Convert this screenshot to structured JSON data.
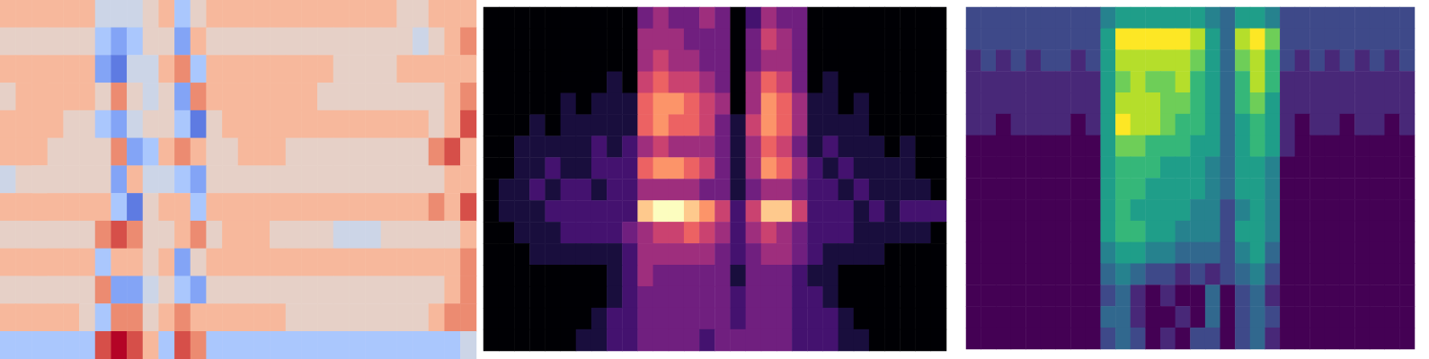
{
  "chart_data": [
    {
      "type": "heatmap",
      "color": "coolwarm",
      "zlim": [
        0,
        9
      ],
      "grid": false,
      "tick_labels": false,
      "cells": [
        [
          6,
          6,
          6,
          6,
          6,
          6,
          4,
          4,
          4,
          5,
          6,
          3,
          5,
          6,
          6,
          6,
          6,
          6,
          6,
          6,
          6,
          6,
          6,
          6,
          6,
          5,
          5,
          6,
          6,
          6
        ],
        [
          5,
          5,
          5,
          5,
          5,
          5,
          3,
          2,
          3,
          5,
          5,
          2,
          6,
          5,
          5,
          5,
          5,
          5,
          5,
          5,
          5,
          5,
          5,
          5,
          5,
          5,
          4,
          5,
          6,
          7
        ],
        [
          6,
          6,
          6,
          6,
          6,
          6,
          2,
          1,
          4,
          4,
          6,
          7,
          3,
          6,
          6,
          6,
          6,
          6,
          6,
          6,
          6,
          5,
          5,
          5,
          5,
          6,
          6,
          6,
          6,
          6
        ],
        [
          5,
          6,
          6,
          6,
          6,
          6,
          5,
          7,
          5,
          4,
          5,
          2,
          7,
          6,
          6,
          6,
          6,
          6,
          6,
          6,
          5,
          5,
          5,
          5,
          5,
          5,
          5,
          5,
          6,
          7
        ],
        [
          6,
          6,
          6,
          6,
          5,
          5,
          3,
          2,
          4,
          5,
          5,
          3,
          1,
          5,
          6,
          6,
          6,
          6,
          6,
          6,
          6,
          6,
          6,
          6,
          6,
          6,
          6,
          5,
          6,
          8
        ],
        [
          6,
          6,
          6,
          5,
          5,
          5,
          5,
          7,
          2,
          3,
          6,
          7,
          6,
          5,
          5,
          6,
          6,
          6,
          5,
          5,
          5,
          5,
          5,
          5,
          5,
          5,
          5,
          7,
          8,
          6
        ],
        [
          4,
          5,
          5,
          5,
          5,
          5,
          5,
          2,
          6,
          4,
          4,
          3,
          2,
          5,
          5,
          5,
          5,
          5,
          5,
          5,
          5,
          5,
          5,
          5,
          5,
          5,
          5,
          5,
          6,
          6
        ],
        [
          6,
          6,
          6,
          6,
          6,
          6,
          6,
          3,
          1,
          5,
          6,
          6,
          3,
          6,
          6,
          6,
          6,
          6,
          6,
          6,
          6,
          6,
          6,
          6,
          6,
          6,
          6,
          7,
          6,
          8
        ],
        [
          5,
          5,
          5,
          5,
          5,
          5,
          7,
          8,
          7,
          5,
          5,
          6,
          7,
          5,
          6,
          6,
          6,
          5,
          5,
          5,
          5,
          4,
          4,
          4,
          5,
          5,
          5,
          5,
          5,
          6
        ],
        [
          6,
          6,
          6,
          6,
          6,
          6,
          3,
          6,
          6,
          5,
          6,
          2,
          5,
          6,
          6,
          6,
          6,
          6,
          6,
          6,
          6,
          6,
          6,
          6,
          6,
          6,
          6,
          6,
          6,
          7
        ],
        [
          5,
          5,
          5,
          5,
          5,
          5,
          7,
          2,
          2,
          4,
          5,
          3,
          2,
          5,
          5,
          5,
          5,
          5,
          5,
          5,
          5,
          5,
          5,
          5,
          5,
          5,
          5,
          5,
          6,
          7
        ],
        [
          6,
          6,
          6,
          6,
          6,
          5,
          3,
          7,
          7,
          5,
          6,
          7,
          6,
          6,
          6,
          6,
          6,
          6,
          5,
          5,
          5,
          5,
          5,
          5,
          5,
          5,
          5,
          6,
          7,
          7
        ],
        [
          3,
          3,
          3,
          3,
          3,
          3,
          8,
          9,
          8,
          6,
          3,
          8,
          7,
          3,
          3,
          3,
          3,
          3,
          3,
          3,
          3,
          3,
          3,
          3,
          3,
          3,
          3,
          3,
          3,
          4
        ]
      ]
    },
    {
      "type": "heatmap",
      "color": "magma",
      "zlim": [
        0,
        9
      ],
      "grid": false,
      "tick_labels": false,
      "cells": [
        [
          0,
          0,
          0,
          0,
          0,
          0,
          0,
          0,
          0,
          0,
          3,
          4,
          3,
          3,
          4,
          3,
          0,
          2,
          4,
          3,
          3,
          0,
          0,
          0,
          0,
          0,
          0,
          0,
          0,
          0
        ],
        [
          0,
          0,
          0,
          0,
          0,
          0,
          0,
          0,
          0,
          0,
          4,
          4,
          4,
          3,
          3,
          3,
          0,
          3,
          5,
          4,
          3,
          0,
          0,
          0,
          0,
          0,
          0,
          0,
          0,
          0
        ],
        [
          0,
          0,
          0,
          0,
          0,
          0,
          0,
          0,
          0,
          0,
          4,
          5,
          4,
          4,
          3,
          3,
          0,
          3,
          4,
          4,
          3,
          0,
          0,
          0,
          0,
          0,
          0,
          0,
          0,
          0
        ],
        [
          0,
          0,
          0,
          0,
          0,
          0,
          0,
          0,
          1,
          0,
          5,
          6,
          5,
          5,
          4,
          3,
          0,
          4,
          6,
          5,
          3,
          0,
          1,
          0,
          0,
          0,
          0,
          0,
          0,
          0
        ],
        [
          0,
          0,
          0,
          0,
          0,
          1,
          0,
          1,
          1,
          1,
          6,
          7,
          7,
          6,
          5,
          4,
          0,
          4,
          7,
          6,
          4,
          1,
          1,
          0,
          1,
          0,
          0,
          0,
          0,
          0
        ],
        [
          0,
          0,
          0,
          1,
          0,
          1,
          1,
          1,
          1,
          1,
          6,
          7,
          6,
          6,
          5,
          3,
          1,
          5,
          7,
          6,
          4,
          1,
          1,
          1,
          1,
          0,
          0,
          0,
          0,
          0
        ],
        [
          0,
          0,
          1,
          1,
          1,
          1,
          1,
          2,
          1,
          2,
          4,
          5,
          4,
          4,
          4,
          3,
          1,
          4,
          6,
          5,
          3,
          1,
          2,
          1,
          1,
          1,
          0,
          1,
          0,
          0
        ],
        [
          0,
          0,
          1,
          1,
          2,
          1,
          1,
          2,
          2,
          2,
          6,
          7,
          7,
          6,
          5,
          3,
          1,
          4,
          7,
          6,
          4,
          2,
          1,
          2,
          1,
          1,
          1,
          1,
          0,
          0
        ],
        [
          0,
          1,
          1,
          2,
          1,
          2,
          2,
          1,
          2,
          2,
          4,
          4,
          4,
          4,
          3,
          3,
          1,
          3,
          4,
          4,
          3,
          2,
          2,
          1,
          2,
          1,
          1,
          1,
          1,
          0
        ],
        [
          0,
          1,
          1,
          1,
          2,
          2,
          2,
          2,
          2,
          2,
          8,
          9,
          9,
          8,
          7,
          5,
          2,
          5,
          8,
          8,
          5,
          2,
          2,
          2,
          1,
          2,
          1,
          2,
          2,
          2
        ],
        [
          0,
          0,
          1,
          1,
          1,
          2,
          2,
          2,
          2,
          3,
          4,
          5,
          5,
          6,
          5,
          4,
          2,
          4,
          5,
          4,
          3,
          2,
          2,
          2,
          1,
          1,
          1,
          1,
          1,
          0
        ],
        [
          0,
          0,
          0,
          1,
          1,
          1,
          1,
          1,
          1,
          2,
          4,
          4,
          4,
          4,
          4,
          3,
          2,
          3,
          4,
          4,
          3,
          2,
          1,
          1,
          1,
          1,
          0,
          0,
          0,
          0
        ],
        [
          0,
          0,
          0,
          0,
          0,
          0,
          0,
          0,
          1,
          2,
          4,
          3,
          3,
          3,
          3,
          3,
          1,
          3,
          3,
          3,
          2,
          1,
          1,
          0,
          0,
          0,
          0,
          0,
          0,
          0
        ],
        [
          0,
          0,
          0,
          0,
          0,
          0,
          0,
          0,
          1,
          2,
          3,
          3,
          3,
          3,
          3,
          3,
          2,
          3,
          3,
          3,
          2,
          2,
          1,
          0,
          0,
          0,
          0,
          0,
          0,
          0
        ],
        [
          0,
          0,
          0,
          0,
          0,
          0,
          0,
          1,
          2,
          2,
          3,
          3,
          3,
          3,
          3,
          3,
          2,
          3,
          3,
          3,
          2,
          2,
          2,
          1,
          0,
          0,
          0,
          0,
          0,
          0
        ],
        [
          0,
          0,
          0,
          0,
          0,
          0,
          1,
          1,
          2,
          2,
          3,
          3,
          3,
          3,
          2,
          3,
          3,
          3,
          3,
          3,
          2,
          2,
          2,
          1,
          1,
          0,
          0,
          0,
          0,
          0
        ]
      ]
    },
    {
      "type": "heatmap",
      "color": "viridis",
      "zlim": [
        0,
        9
      ],
      "grid": false,
      "tick_labels": false,
      "cells": [
        [
          2,
          2,
          2,
          2,
          2,
          2,
          2,
          2,
          2,
          4,
          5,
          5,
          5,
          5,
          5,
          5,
          4,
          3,
          5,
          5,
          4,
          2,
          2,
          2,
          2,
          2,
          2,
          2,
          2,
          2
        ],
        [
          2,
          2,
          2,
          2,
          2,
          2,
          2,
          2,
          2,
          5,
          9,
          9,
          9,
          9,
          9,
          8,
          5,
          3,
          8,
          9,
          7,
          2,
          2,
          2,
          2,
          2,
          2,
          2,
          2,
          2
        ],
        [
          1,
          2,
          1,
          2,
          1,
          2,
          2,
          1,
          2,
          5,
          8,
          8,
          8,
          8,
          8,
          7,
          5,
          3,
          7,
          8,
          6,
          2,
          1,
          2,
          1,
          2,
          1,
          2,
          1,
          2
        ],
        [
          1,
          1,
          1,
          1,
          1,
          1,
          1,
          1,
          1,
          5,
          7,
          8,
          7,
          7,
          8,
          6,
          5,
          3,
          6,
          8,
          6,
          1,
          1,
          1,
          1,
          1,
          1,
          1,
          1,
          1
        ],
        [
          1,
          1,
          1,
          1,
          1,
          1,
          1,
          1,
          1,
          5,
          8,
          8,
          8,
          7,
          7,
          6,
          5,
          3,
          6,
          7,
          5,
          1,
          1,
          1,
          1,
          1,
          1,
          1,
          1,
          1
        ],
        [
          1,
          1,
          0,
          1,
          1,
          1,
          1,
          0,
          1,
          5,
          9,
          8,
          8,
          7,
          6,
          6,
          5,
          3,
          5,
          6,
          5,
          1,
          0,
          1,
          1,
          0,
          1,
          1,
          0,
          1
        ],
        [
          0,
          0,
          0,
          0,
          0,
          0,
          0,
          0,
          0,
          5,
          7,
          7,
          6,
          6,
          6,
          5,
          5,
          3,
          5,
          6,
          5,
          1,
          0,
          0,
          0,
          0,
          0,
          0,
          0,
          0
        ],
        [
          0,
          0,
          0,
          0,
          0,
          0,
          0,
          0,
          0,
          5,
          6,
          6,
          6,
          5,
          5,
          5,
          4,
          3,
          5,
          5,
          4,
          0,
          0,
          0,
          0,
          0,
          0,
          0,
          0,
          0
        ],
        [
          0,
          0,
          0,
          0,
          0,
          0,
          0,
          0,
          0,
          5,
          6,
          6,
          5,
          5,
          5,
          5,
          4,
          3,
          5,
          5,
          4,
          0,
          0,
          0,
          0,
          0,
          0,
          0,
          0,
          0
        ],
        [
          0,
          0,
          0,
          0,
          0,
          0,
          0,
          0,
          0,
          5,
          6,
          5,
          5,
          5,
          5,
          4,
          4,
          2,
          4,
          5,
          4,
          0,
          0,
          0,
          0,
          0,
          0,
          0,
          0,
          0
        ],
        [
          0,
          0,
          0,
          0,
          0,
          0,
          0,
          0,
          0,
          5,
          6,
          6,
          5,
          5,
          4,
          4,
          4,
          2,
          5,
          5,
          4,
          0,
          0,
          0,
          0,
          0,
          0,
          0,
          0,
          0
        ],
        [
          0,
          0,
          0,
          0,
          0,
          0,
          0,
          0,
          0,
          4,
          5,
          5,
          4,
          4,
          3,
          3,
          3,
          2,
          4,
          5,
          3,
          0,
          0,
          0,
          0,
          0,
          0,
          0,
          0,
          0
        ],
        [
          0,
          0,
          0,
          0,
          0,
          0,
          0,
          0,
          0,
          3,
          4,
          3,
          2,
          2,
          1,
          2,
          1,
          2,
          3,
          4,
          2,
          0,
          0,
          0,
          0,
          0,
          0,
          0,
          0,
          0
        ],
        [
          0,
          0,
          0,
          0,
          0,
          0,
          0,
          0,
          0,
          2,
          3,
          1,
          0,
          1,
          0,
          0,
          3,
          0,
          2,
          3,
          1,
          0,
          0,
          0,
          0,
          0,
          0,
          0,
          0,
          0
        ],
        [
          0,
          0,
          0,
          0,
          0,
          0,
          0,
          0,
          0,
          3,
          3,
          1,
          0,
          0,
          1,
          0,
          3,
          0,
          2,
          3,
          2,
          0,
          0,
          0,
          0,
          0,
          0,
          0,
          0,
          0
        ],
        [
          0,
          0,
          0,
          0,
          0,
          0,
          0,
          0,
          0,
          2,
          3,
          2,
          0,
          1,
          0,
          2,
          2,
          0,
          2,
          3,
          1,
          0,
          0,
          0,
          0,
          0,
          0,
          0,
          0,
          0
        ]
      ]
    }
  ]
}
